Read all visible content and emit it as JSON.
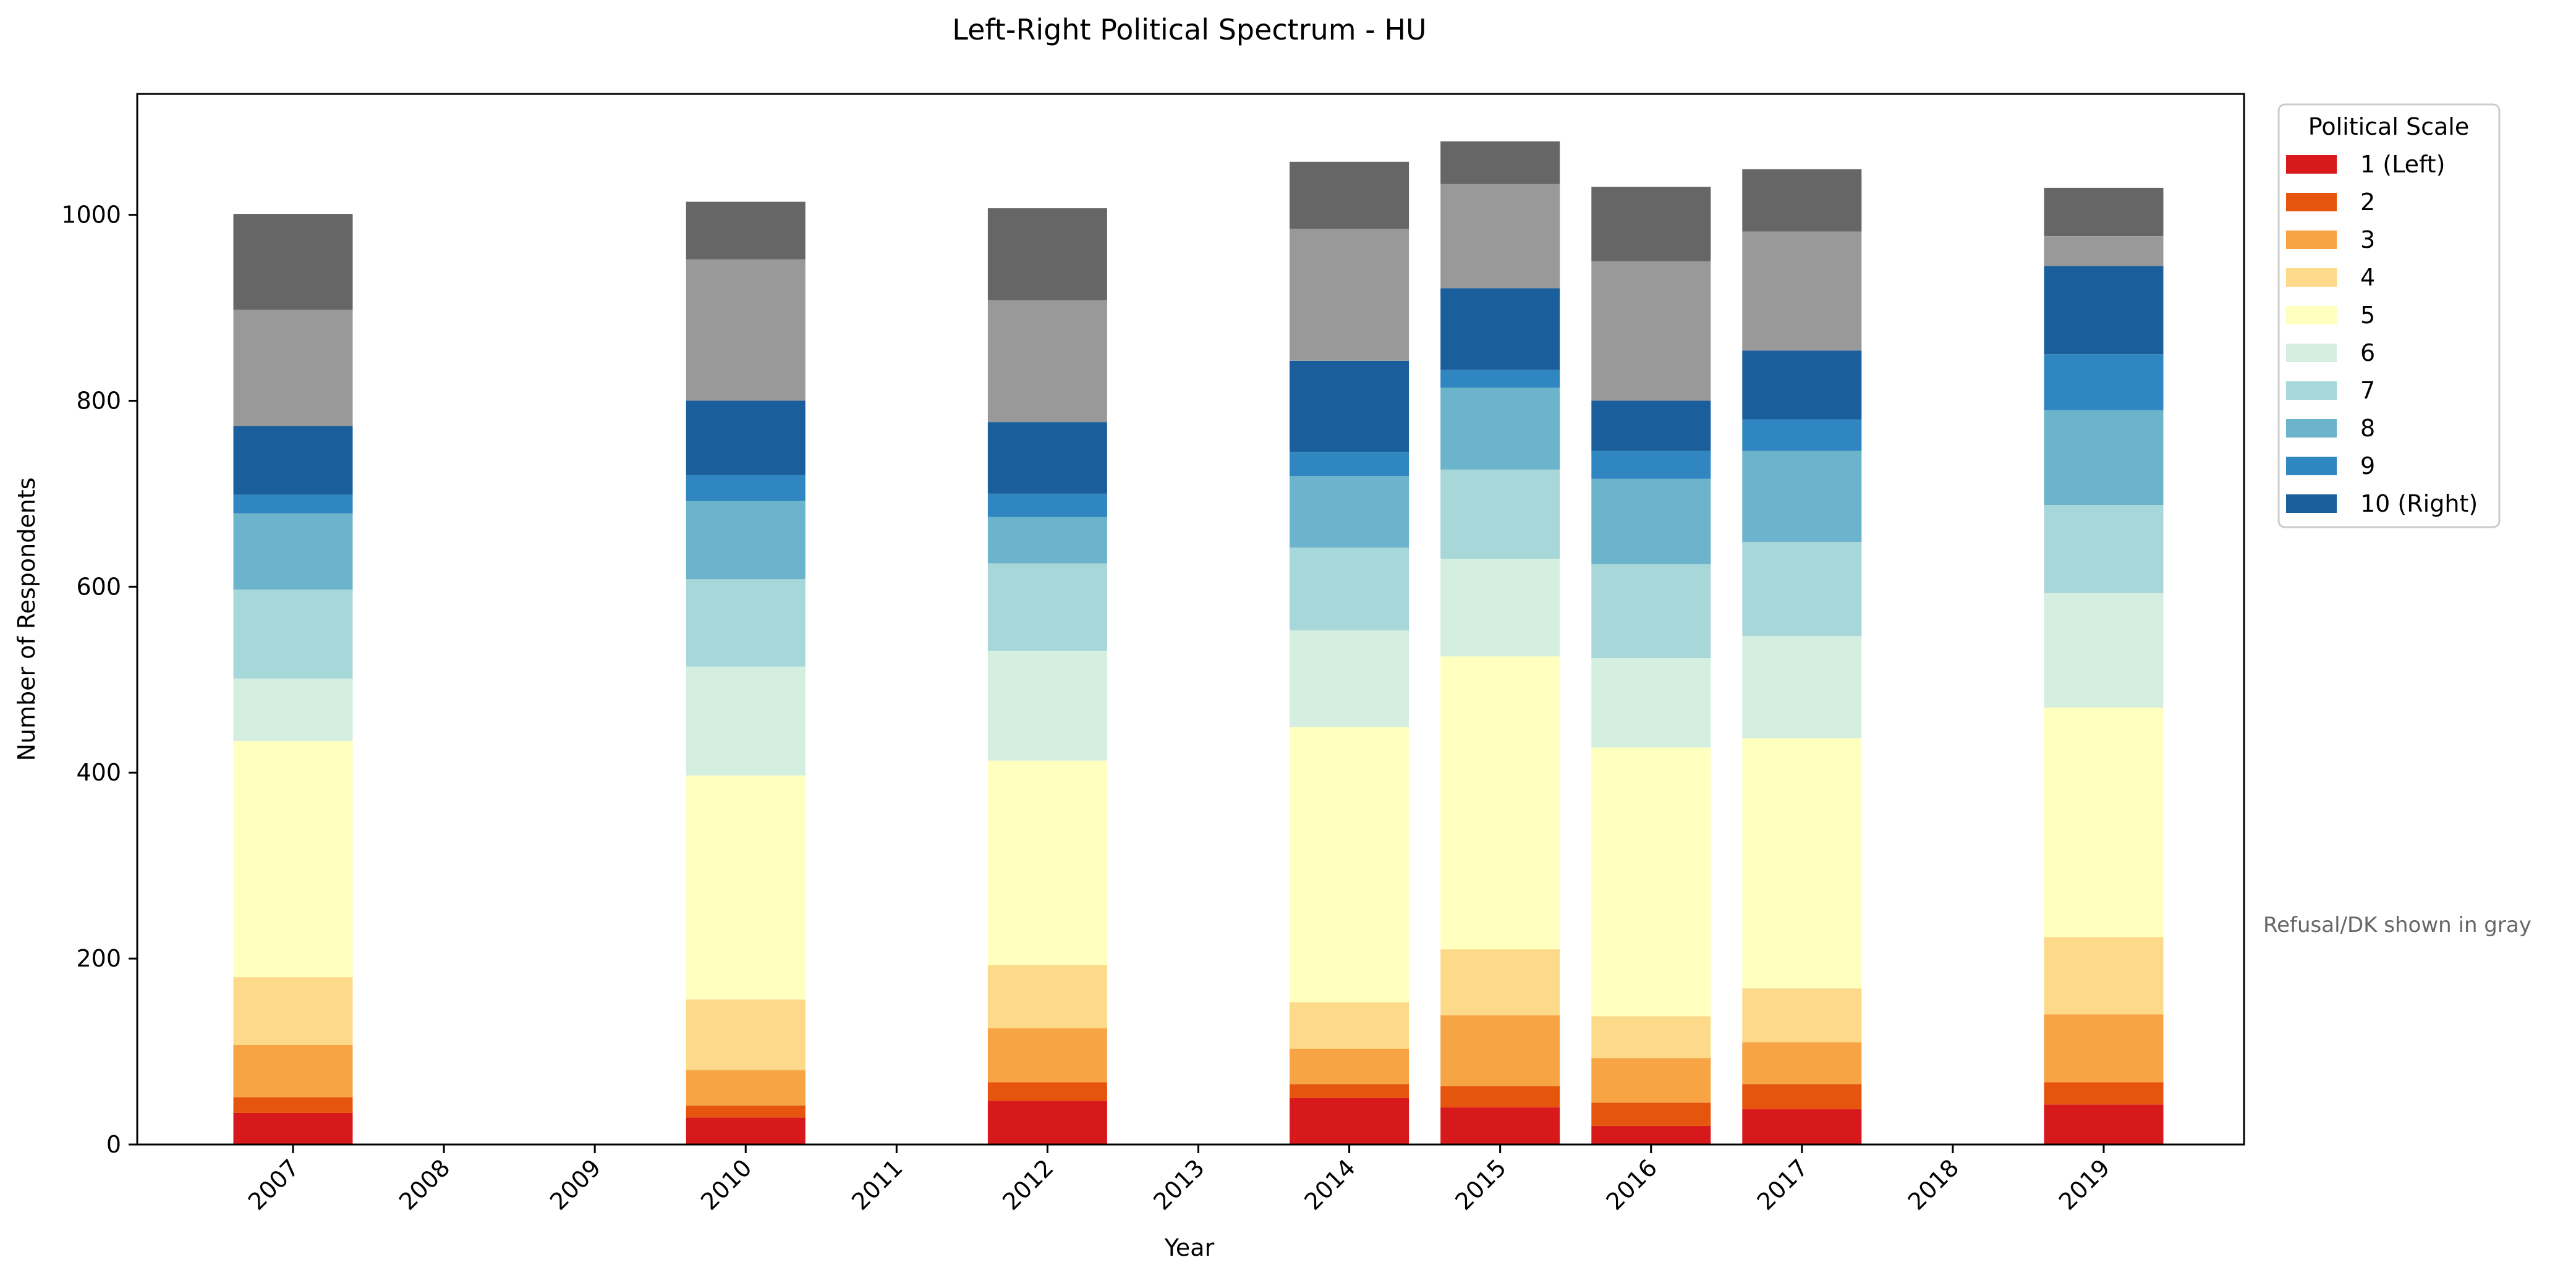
{
  "chart_data": {
    "type": "bar",
    "stacked": true,
    "title": "Left-Right Political Spectrum - HU",
    "xlabel": "Year",
    "ylabel": "Number of Respondents",
    "categories": [
      "2007",
      "2008",
      "2009",
      "2010",
      "2011",
      "2012",
      "2013",
      "2014",
      "2015",
      "2016",
      "2017",
      "2018",
      "2019"
    ],
    "ylim": [
      0,
      1130
    ],
    "yticks": [
      0,
      200,
      400,
      600,
      800,
      1000
    ],
    "legend": {
      "title": "Political Scale",
      "position": "outside-right-top"
    },
    "annotation": "Refusal/DK shown in gray",
    "series": [
      {
        "name": "1 (Left)",
        "color": "#d7191c",
        "values": [
          34,
          0,
          0,
          29,
          0,
          47,
          0,
          50,
          40,
          20,
          38,
          0,
          43
        ]
      },
      {
        "name": "2",
        "color": "#e6550d",
        "values": [
          17,
          0,
          0,
          13,
          0,
          20,
          0,
          15,
          23,
          25,
          27,
          0,
          24
        ]
      },
      {
        "name": "3",
        "color": "#f7a444",
        "values": [
          56,
          0,
          0,
          38,
          0,
          58,
          0,
          38,
          76,
          48,
          45,
          0,
          73
        ]
      },
      {
        "name": "4",
        "color": "#fdd98a",
        "values": [
          73,
          0,
          0,
          76,
          0,
          68,
          0,
          50,
          71,
          45,
          58,
          0,
          83
        ]
      },
      {
        "name": "5",
        "color": "#ffffbf",
        "values": [
          254,
          0,
          0,
          241,
          0,
          220,
          0,
          296,
          315,
          289,
          269,
          0,
          247
        ]
      },
      {
        "name": "6",
        "color": "#d4efdf",
        "values": [
          67,
          0,
          0,
          117,
          0,
          118,
          0,
          104,
          105,
          96,
          110,
          0,
          123
        ]
      },
      {
        "name": "7",
        "color": "#a8d7da",
        "values": [
          96,
          0,
          0,
          94,
          0,
          94,
          0,
          89,
          96,
          101,
          101,
          0,
          95
        ]
      },
      {
        "name": "8",
        "color": "#6cb4cb",
        "values": [
          82,
          0,
          0,
          84,
          0,
          50,
          0,
          77,
          88,
          92,
          98,
          0,
          102
        ]
      },
      {
        "name": "9",
        "color": "#2f86c0",
        "values": [
          20,
          0,
          0,
          28,
          0,
          25,
          0,
          26,
          19,
          30,
          34,
          0,
          60
        ]
      },
      {
        "name": "10 (Right)",
        "color": "#1b5e9c",
        "values": [
          74,
          0,
          0,
          80,
          0,
          77,
          0,
          98,
          88,
          54,
          74,
          0,
          95
        ]
      },
      {
        "name": "",
        "color": "#999999",
        "values": [
          125,
          0,
          0,
          152,
          0,
          131,
          0,
          142,
          112,
          150,
          128,
          0,
          32
        ]
      },
      {
        "name": "",
        "color": "#666666",
        "values": [
          103,
          0,
          0,
          62,
          0,
          99,
          0,
          72,
          46,
          80,
          67,
          0,
          52
        ]
      }
    ]
  }
}
